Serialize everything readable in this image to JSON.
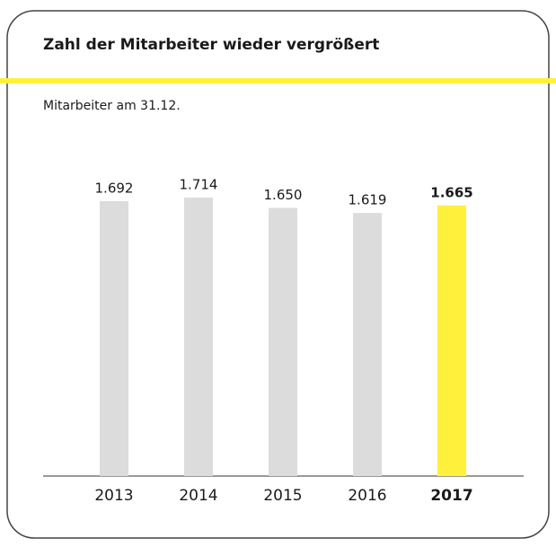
{
  "chart_data": {
    "type": "bar",
    "title": "Zahl der Mitarbeiter wieder vergrößert",
    "subtitle": "Mitarbeiter am 31.12.",
    "categories": [
      "2013",
      "2014",
      "2015",
      "2016",
      "2017"
    ],
    "values": [
      1692,
      1714,
      1650,
      1619,
      1665
    ],
    "value_labels": [
      "1.692",
      "1.714",
      "1.650",
      "1.619",
      "1.665"
    ],
    "colors": [
      "#dcdcdc",
      "#dcdcdc",
      "#dcdcdc",
      "#dcdcdc",
      "#fff03c"
    ],
    "bold": [
      false,
      false,
      false,
      false,
      true
    ],
    "ylim": [
      0,
      1850
    ]
  }
}
